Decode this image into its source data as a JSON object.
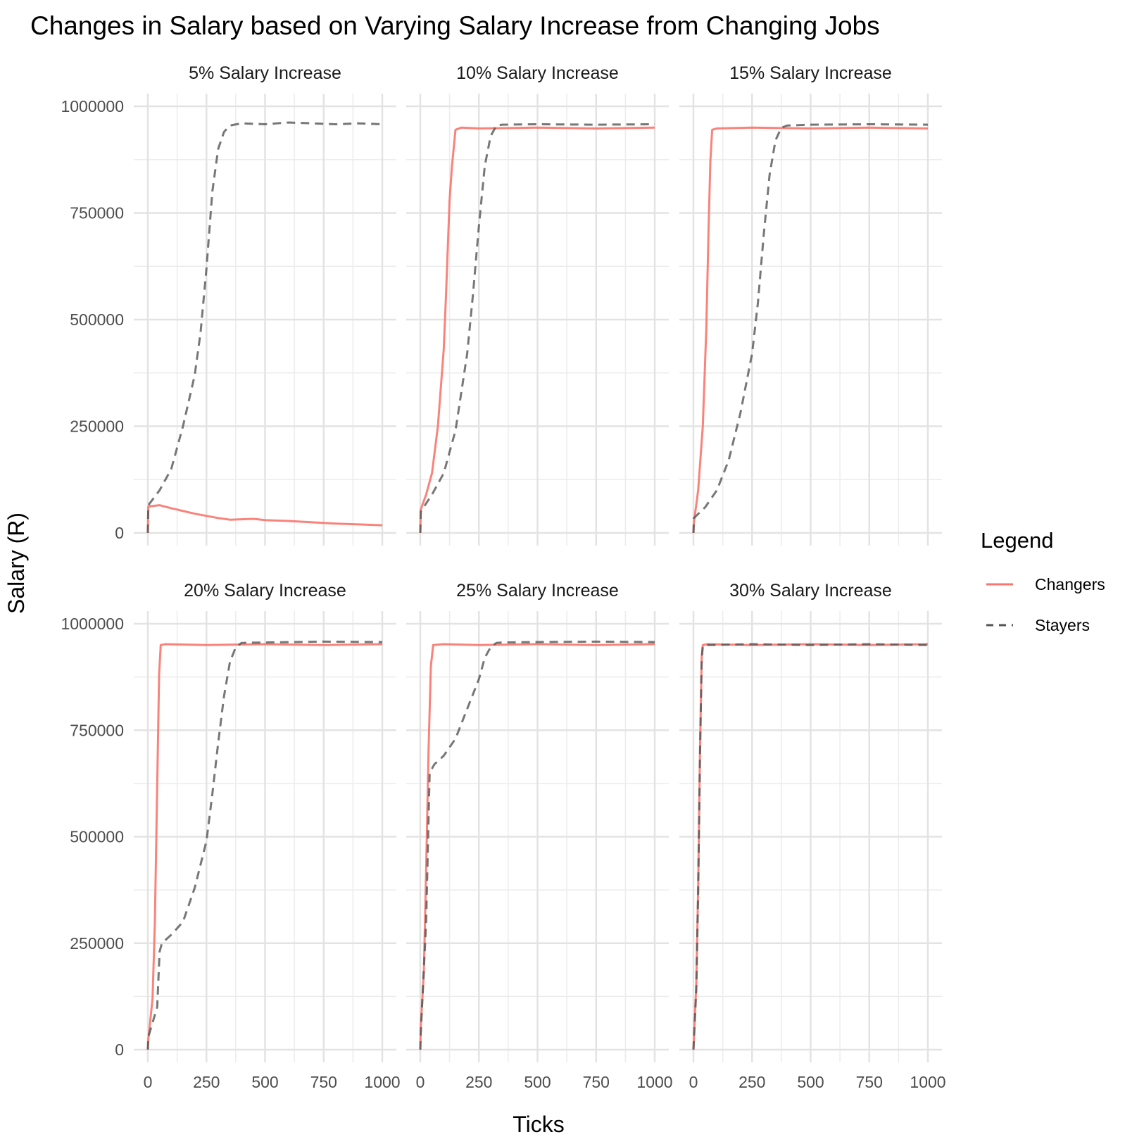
{
  "chart_data": {
    "type": "line",
    "title": "Changes in Salary based on Varying Salary Increase from Changing Jobs",
    "xlabel": "Ticks",
    "ylabel": "Salary (R)",
    "xlim": [
      0,
      1000
    ],
    "ylim": [
      0,
      1000000
    ],
    "x_ticks": [
      "0",
      "250",
      "500",
      "750",
      "1000"
    ],
    "y_ticks": [
      "0",
      "250000",
      "500000",
      "750000",
      "1000000"
    ],
    "grid": true,
    "legend": {
      "title": "Legend",
      "position": "right",
      "entries": [
        {
          "name": "Changers",
          "color": "#f8766d",
          "style": "solid"
        },
        {
          "name": "Stayers",
          "color": "#555555",
          "style": "dashed"
        }
      ]
    },
    "panels": [
      {
        "label": "5% Salary Increase",
        "series": [
          {
            "name": "Changers",
            "x": [
              0,
              2,
              50,
              100,
              200,
              250,
              300,
              350,
              400,
              450,
              500,
              600,
              700,
              800,
              900,
              1000
            ],
            "y": [
              0,
              62000,
              65000,
              58000,
              45000,
              40000,
              35000,
              31000,
              32000,
              33000,
              30000,
              28000,
              25000,
              22000,
              20000,
              18000
            ]
          },
          {
            "name": "Stayers",
            "x": [
              0,
              2,
              50,
              100,
              150,
              200,
              225,
              250,
              275,
              300,
              325,
              350,
              400,
              500,
              600,
              700,
              800,
              900,
              1000
            ],
            "y": [
              0,
              65000,
              100000,
              150000,
              250000,
              370000,
              470000,
              620000,
              800000,
              900000,
              940000,
              955000,
              960000,
              958000,
              962000,
              960000,
              958000,
              960000,
              958000
            ]
          }
        ]
      },
      {
        "label": "10% Salary Increase",
        "series": [
          {
            "name": "Changers",
            "x": [
              0,
              2,
              25,
              50,
              75,
              100,
              110,
              125,
              135,
              150,
              175,
              250,
              500,
              750,
              1000
            ],
            "y": [
              0,
              55000,
              90000,
              140000,
              250000,
              430000,
              560000,
              780000,
              860000,
              945000,
              950000,
              948000,
              950000,
              948000,
              950000
            ]
          },
          {
            "name": "Stayers",
            "x": [
              0,
              2,
              50,
              100,
              150,
              200,
              225,
              250,
              275,
              300,
              325,
              350,
              500,
              750,
              1000
            ],
            "y": [
              0,
              50000,
              90000,
              140000,
              240000,
              420000,
              560000,
              720000,
              860000,
              930000,
              955000,
              957000,
              958000,
              957000,
              958000
            ]
          }
        ]
      },
      {
        "label": "15% Salary Increase",
        "series": [
          {
            "name": "Changers",
            "x": [
              0,
              2,
              20,
              40,
              55,
              65,
              72,
              80,
              100,
              250,
              500,
              750,
              1000
            ],
            "y": [
              0,
              25000,
              100000,
              250000,
              480000,
              720000,
              870000,
              945000,
              948000,
              950000,
              948000,
              950000,
              948000
            ]
          },
          {
            "name": "Stayers",
            "x": [
              0,
              2,
              50,
              100,
              150,
              200,
              250,
              275,
              300,
              325,
              350,
              375,
              400,
              500,
              750,
              1000
            ],
            "y": [
              0,
              35000,
              60000,
              100000,
              170000,
              280000,
              420000,
              540000,
              700000,
              840000,
              920000,
              950000,
              955000,
              957000,
              958000,
              957000
            ]
          }
        ]
      },
      {
        "label": "20% Salary Increase",
        "series": [
          {
            "name": "Changers",
            "x": [
              0,
              2,
              20,
              30,
              40,
              48,
              55,
              75,
              250,
              500,
              750,
              1000
            ],
            "y": [
              0,
              25000,
              120000,
              300000,
              620000,
              880000,
              950000,
              952000,
              950000,
              952000,
              950000,
              952000
            ]
          },
          {
            "name": "Stayers",
            "x": [
              0,
              2,
              40,
              50,
              60,
              100,
              150,
              200,
              250,
              275,
              300,
              325,
              350,
              375,
              400,
              500,
              750,
              1000
            ],
            "y": [
              0,
              30000,
              100000,
              230000,
              250000,
              270000,
              300000,
              380000,
              490000,
              600000,
              720000,
              830000,
              910000,
              945000,
              955000,
              956000,
              958000,
              957000
            ]
          }
        ]
      },
      {
        "label": "25% Salary Increase",
        "series": [
          {
            "name": "Changers",
            "x": [
              0,
              2,
              15,
              25,
              35,
              45,
              55,
              100,
              250,
              500,
              750,
              1000
            ],
            "y": [
              0,
              55000,
              180000,
              420000,
              700000,
              900000,
              950000,
              952000,
              950000,
              952000,
              950000,
              952000
            ]
          },
          {
            "name": "Stayers",
            "x": [
              0,
              2,
              25,
              40,
              60,
              100,
              150,
              200,
              250,
              275,
              300,
              325,
              350,
              500,
              750,
              1000
            ],
            "y": [
              0,
              40000,
              300000,
              650000,
              670000,
              690000,
              730000,
              800000,
              870000,
              920000,
              945000,
              955000,
              956000,
              957000,
              958000,
              957000
            ]
          }
        ]
      },
      {
        "label": "30% Salary Increase",
        "series": [
          {
            "name": "Changers",
            "x": [
              0,
              2,
              12,
              20,
              28,
              35,
              40,
              60,
              250,
              500,
              750,
              1000
            ],
            "y": [
              0,
              30000,
              150000,
              380000,
              700000,
              920000,
              950000,
              952000,
              950000,
              952000,
              950000,
              952000
            ]
          },
          {
            "name": "Stayers",
            "x": [
              0,
              2,
              12,
              20,
              28,
              35,
              40,
              60,
              250,
              500,
              750,
              1000
            ],
            "y": [
              0,
              25000,
              140000,
              370000,
              690000,
              915000,
              948000,
              950000,
              952000,
              950000,
              952000,
              950000
            ]
          }
        ]
      }
    ]
  }
}
